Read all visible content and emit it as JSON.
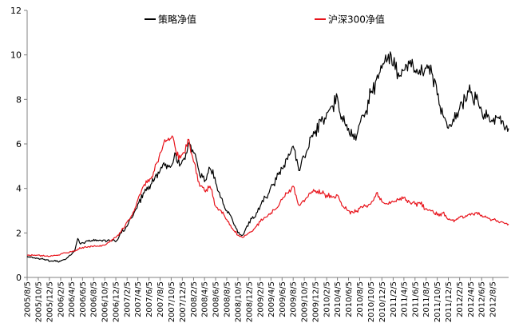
{
  "chart_data": {
    "type": "line",
    "title": "",
    "xlabel": "",
    "ylabel": "",
    "ylim": [
      0,
      12
    ],
    "yticks": [
      0,
      2,
      4,
      6,
      8,
      10,
      12
    ],
    "grid": false,
    "legend_position": "top",
    "x_tick_labels": [
      "2005/8/5",
      "2005/10/5",
      "2005/12/5",
      "2006/2/5",
      "2006/4/5",
      "2006/6/5",
      "2006/8/5",
      "2006/10/5",
      "2006/12/5",
      "2007/2/5",
      "2007/4/5",
      "2007/6/5",
      "2007/8/5",
      "2007/10/5",
      "2007/12/5",
      "2008/2/5",
      "2008/4/5",
      "2008/6/5",
      "2008/8/5",
      "2008/10/5",
      "2008/12/5",
      "2009/2/5",
      "2009/4/5",
      "2009/6/5",
      "2009/8/5",
      "2009/10/5",
      "2009/12/5",
      "2010/2/5",
      "2010/4/5",
      "2010/6/5",
      "2010/8/5",
      "2010/10/5",
      "2010/12/5",
      "2011/2/5",
      "2011/4/5",
      "2011/6/5",
      "2011/8/5",
      "2011/10/5",
      "2011/12/5",
      "2012/2/5",
      "2012/4/5",
      "2012/6/5",
      "2012/8/5"
    ],
    "x_start": "2005/8/5",
    "x_end": "2012/10/31",
    "series": [
      {
        "name": "策略净值",
        "color": "#000000",
        "points": [
          [
            "2005/8/5",
            0.95
          ],
          [
            "2005/9/15",
            0.88
          ],
          [
            "2005/11/1",
            0.82
          ],
          [
            "2005/12/20",
            0.74
          ],
          [
            "2006/2/5",
            0.73
          ],
          [
            "2006/3/1",
            0.8
          ],
          [
            "2006/4/1",
            1.0
          ],
          [
            "2006/4/25",
            1.25
          ],
          [
            "2006/5/10",
            1.75
          ],
          [
            "2006/5/25",
            1.5
          ],
          [
            "2006/6/10",
            1.55
          ],
          [
            "2006/7/1",
            1.65
          ],
          [
            "2006/9/1",
            1.65
          ],
          [
            "2006/11/1",
            1.65
          ],
          [
            "2006/12/10",
            1.66
          ],
          [
            "2007/1/5",
            2.0
          ],
          [
            "2007/2/5",
            2.3
          ],
          [
            "2007/3/5",
            2.7
          ],
          [
            "2007/4/5",
            3.3
          ],
          [
            "2007/5/10",
            3.8
          ],
          [
            "2007/6/5",
            4.1
          ],
          [
            "2007/7/5",
            4.4
          ],
          [
            "2007/8/5",
            4.8
          ],
          [
            "2007/9/5",
            5.1
          ],
          [
            "2007/10/5",
            5.0
          ],
          [
            "2007/10/25",
            5.6
          ],
          [
            "2007/11/20",
            5.0
          ],
          [
            "2007/12/20",
            5.3
          ],
          [
            "2008/1/15",
            6.0
          ],
          [
            "2008/2/5",
            5.6
          ],
          [
            "2008/3/5",
            4.8
          ],
          [
            "2008/4/5",
            4.3
          ],
          [
            "2008/5/5",
            4.9
          ],
          [
            "2008/6/1",
            4.5
          ],
          [
            "2008/7/1",
            3.6
          ],
          [
            "2008/8/5",
            3.0
          ],
          [
            "2008/9/5",
            2.6
          ],
          [
            "2008/10/5",
            2.0
          ],
          [
            "2008/11/1",
            1.9
          ],
          [
            "2008/12/5",
            2.5
          ],
          [
            "2009/1/5",
            2.7
          ],
          [
            "2009/2/5",
            3.2
          ],
          [
            "2009/3/5",
            3.6
          ],
          [
            "2009/4/5",
            4.1
          ],
          [
            "2009/5/5",
            4.4
          ],
          [
            "2009/6/5",
            4.9
          ],
          [
            "2009/7/5",
            5.3
          ],
          [
            "2009/8/5",
            5.9
          ],
          [
            "2009/9/5",
            4.8
          ],
          [
            "2009/10/5",
            5.4
          ],
          [
            "2009/11/5",
            6.3
          ],
          [
            "2009/12/5",
            6.6
          ],
          [
            "2010/1/5",
            7.0
          ],
          [
            "2010/2/5",
            7.4
          ],
          [
            "2010/3/5",
            7.7
          ],
          [
            "2010/4/5",
            8.1
          ],
          [
            "2010/5/5",
            7.0
          ],
          [
            "2010/6/5",
            6.7
          ],
          [
            "2010/7/5",
            6.2
          ],
          [
            "2010/8/5",
            6.9
          ],
          [
            "2010/9/5",
            7.4
          ],
          [
            "2010/10/5",
            8.3
          ],
          [
            "2010/11/5",
            8.9
          ],
          [
            "2010/12/5",
            9.4
          ],
          [
            "2011/1/5",
            9.8
          ],
          [
            "2011/1/25",
            10.0
          ],
          [
            "2011/2/5",
            9.5
          ],
          [
            "2011/3/5",
            9.2
          ],
          [
            "2011/4/5",
            9.3
          ],
          [
            "2011/5/5",
            9.6
          ],
          [
            "2011/6/5",
            9.3
          ],
          [
            "2011/7/5",
            9.1
          ],
          [
            "2011/8/5",
            9.4
          ],
          [
            "2011/9/5",
            9.2
          ],
          [
            "2011/10/5",
            8.2
          ],
          [
            "2011/11/5",
            7.3
          ],
          [
            "2011/12/5",
            6.7
          ],
          [
            "2012/1/5",
            7.0
          ],
          [
            "2012/2/5",
            7.6
          ],
          [
            "2012/3/5",
            8.1
          ],
          [
            "2012/4/5",
            8.3
          ],
          [
            "2012/5/5",
            8.0
          ],
          [
            "2012/6/5",
            7.5
          ],
          [
            "2012/7/5",
            7.2
          ],
          [
            "2012/8/5",
            7.0
          ],
          [
            "2012/9/5",
            7.2
          ],
          [
            "2012/10/5",
            6.8
          ],
          [
            "2012/10/31",
            6.7
          ]
        ]
      },
      {
        "name": "沪深300净值",
        "color": "#e8141c",
        "points": [
          [
            "2005/8/5",
            1.0
          ],
          [
            "2005/10/1",
            1.0
          ],
          [
            "2005/12/5",
            0.95
          ],
          [
            "2006/2/5",
            1.05
          ],
          [
            "2006/4/5",
            1.15
          ],
          [
            "2006/6/5",
            1.35
          ],
          [
            "2006/8/5",
            1.4
          ],
          [
            "2006/10/5",
            1.45
          ],
          [
            "2006/12/5",
            1.8
          ],
          [
            "2007/1/5",
            2.1
          ],
          [
            "2007/2/5",
            2.5
          ],
          [
            "2007/3/5",
            2.8
          ],
          [
            "2007/4/5",
            3.5
          ],
          [
            "2007/5/5",
            4.1
          ],
          [
            "2007/6/5",
            4.3
          ],
          [
            "2007/7/5",
            4.8
          ],
          [
            "2007/8/5",
            5.6
          ],
          [
            "2007/9/5",
            6.1
          ],
          [
            "2007/10/15",
            6.3
          ],
          [
            "2007/11/15",
            5.3
          ],
          [
            "2007/12/15",
            5.6
          ],
          [
            "2008/1/10",
            6.2
          ],
          [
            "2008/2/5",
            5.2
          ],
          [
            "2008/3/5",
            4.3
          ],
          [
            "2008/4/5",
            3.9
          ],
          [
            "2008/5/5",
            4.1
          ],
          [
            "2008/6/5",
            3.2
          ],
          [
            "2008/7/5",
            3.0
          ],
          [
            "2008/8/5",
            2.6
          ],
          [
            "2008/9/5",
            2.2
          ],
          [
            "2008/10/5",
            1.9
          ],
          [
            "2008/11/1",
            1.8
          ],
          [
            "2008/12/5",
            2.0
          ],
          [
            "2009/1/5",
            2.2
          ],
          [
            "2009/2/5",
            2.5
          ],
          [
            "2009/3/5",
            2.7
          ],
          [
            "2009/4/5",
            2.9
          ],
          [
            "2009/5/5",
            3.1
          ],
          [
            "2009/6/5",
            3.5
          ],
          [
            "2009/7/5",
            3.8
          ],
          [
            "2009/8/5",
            4.1
          ],
          [
            "2009/9/1",
            3.3
          ],
          [
            "2009/10/5",
            3.4
          ],
          [
            "2009/11/5",
            3.8
          ],
          [
            "2009/12/5",
            3.9
          ],
          [
            "2010/1/5",
            3.8
          ],
          [
            "2010/2/5",
            3.7
          ],
          [
            "2010/3/5",
            3.6
          ],
          [
            "2010/4/5",
            3.7
          ],
          [
            "2010/5/5",
            3.2
          ],
          [
            "2010/6/5",
            3.0
          ],
          [
            "2010/7/5",
            2.9
          ],
          [
            "2010/8/5",
            3.1
          ],
          [
            "2010/9/5",
            3.2
          ],
          [
            "2010/10/5",
            3.3
          ],
          [
            "2010/11/5",
            3.8
          ],
          [
            "2010/12/5",
            3.4
          ],
          [
            "2011/1/5",
            3.3
          ],
          [
            "2011/2/5",
            3.4
          ],
          [
            "2011/3/5",
            3.5
          ],
          [
            "2011/4/5",
            3.6
          ],
          [
            "2011/5/5",
            3.4
          ],
          [
            "2011/6/5",
            3.3
          ],
          [
            "2011/7/5",
            3.3
          ],
          [
            "2011/8/5",
            3.1
          ],
          [
            "2011/9/5",
            3.0
          ],
          [
            "2011/10/5",
            2.8
          ],
          [
            "2011/11/5",
            2.9
          ],
          [
            "2011/12/5",
            2.6
          ],
          [
            "2012/1/5",
            2.5
          ],
          [
            "2012/2/5",
            2.7
          ],
          [
            "2012/3/5",
            2.7
          ],
          [
            "2012/4/5",
            2.8
          ],
          [
            "2012/5/5",
            2.9
          ],
          [
            "2012/6/5",
            2.8
          ],
          [
            "2012/7/5",
            2.7
          ],
          [
            "2012/8/5",
            2.6
          ],
          [
            "2012/9/5",
            2.5
          ],
          [
            "2012/10/5",
            2.45
          ],
          [
            "2012/10/31",
            2.4
          ]
        ]
      }
    ]
  }
}
